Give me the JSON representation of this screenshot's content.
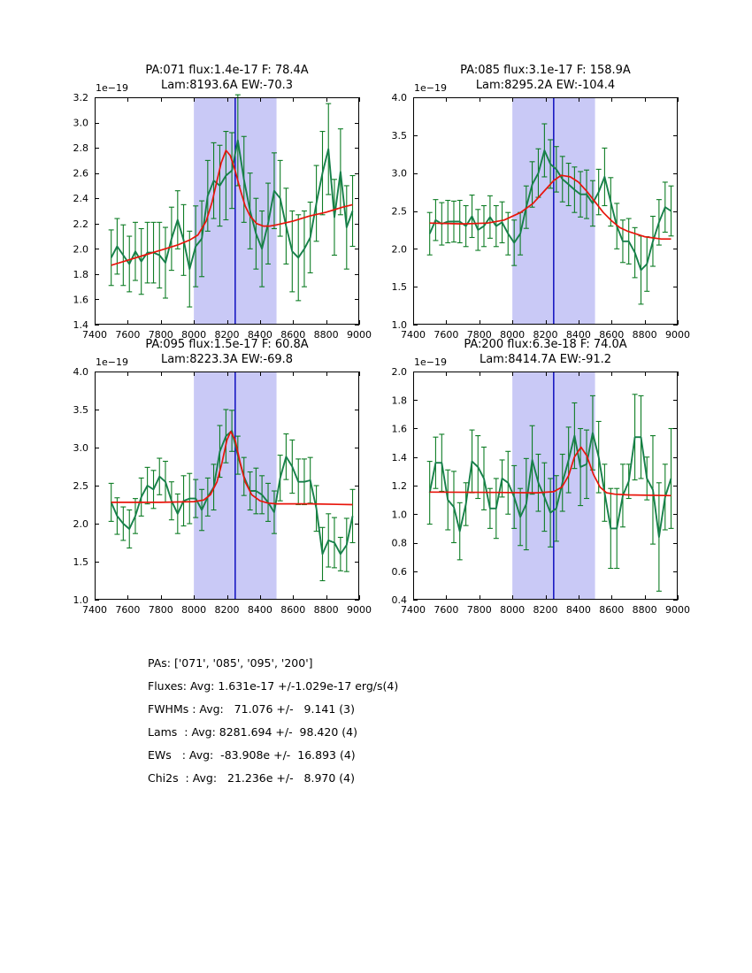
{
  "chart_data": {
    "type": "line",
    "description": "2x2 grid of spectral line fits: flux vs wavelength with error bars, red Gaussian+continuum fit, shaded fit window 8000-8500 A and vertical center line at 8250 A",
    "colors": {
      "data_line": "#17804a",
      "error_bar": "#0e7d25",
      "fit_line": "#e8150b",
      "band_fill": "#c9c9f6",
      "center_line": "#0000bb",
      "axis": "#000000"
    },
    "shared": {
      "xlim": [
        7400,
        9000
      ],
      "xticks": [
        7400,
        7600,
        7800,
        8000,
        8200,
        8400,
        8600,
        8800,
        9000
      ],
      "xtick_labels": [
        "7400",
        "7600",
        "7800",
        "8000",
        "8200",
        "8400",
        "8600",
        "8800",
        "9000"
      ],
      "band": [
        8000,
        8500
      ],
      "vline": 8250,
      "offset_label": "1e−19",
      "x_data": [
        7500,
        7536,
        7573,
        7610,
        7646,
        7682,
        7719,
        7756,
        7792,
        7828,
        7865,
        7902,
        7938,
        7974,
        8011,
        8048,
        8084,
        8120,
        8157,
        8194,
        8230,
        8266,
        8303,
        8340,
        8376,
        8412,
        8449,
        8486,
        8522,
        8558,
        8595,
        8632,
        8668,
        8704,
        8741,
        8778,
        8814,
        8850,
        8887,
        8924,
        8960
      ]
    },
    "panels": [
      {
        "title1": "PA:071 flux:1.4e-17 F: 78.4A",
        "title2": "Lam:8193.6A EW:-70.3",
        "ylim": [
          1.4,
          3.2
        ],
        "yticks": [
          1.4,
          1.6,
          1.8,
          2.0,
          2.2,
          2.4,
          2.6,
          2.8,
          3.0,
          3.2
        ],
        "ytick_labels": [
          "1.4",
          "1.6",
          "1.8",
          "2.0",
          "2.2",
          "2.4",
          "2.6",
          "2.8",
          "3.0",
          "3.2"
        ],
        "flux": [
          1.93,
          2.02,
          1.95,
          1.88,
          1.98,
          1.9,
          1.97,
          1.97,
          1.95,
          1.89,
          2.08,
          2.23,
          2.07,
          1.84,
          2.02,
          2.08,
          2.42,
          2.54,
          2.5,
          2.58,
          2.62,
          2.86,
          2.55,
          2.3,
          2.12,
          2.0,
          2.2,
          2.46,
          2.4,
          2.18,
          1.98,
          1.93,
          2.0,
          2.09,
          2.36,
          2.6,
          2.79,
          2.25,
          2.61,
          2.17,
          2.3
        ],
        "flux_err": [
          0.22,
          0.22,
          0.24,
          0.22,
          0.23,
          0.26,
          0.24,
          0.24,
          0.26,
          0.28,
          0.25,
          0.23,
          0.28,
          0.3,
          0.32,
          0.3,
          0.28,
          0.3,
          0.32,
          0.35,
          0.3,
          0.36,
          0.34,
          0.3,
          0.28,
          0.3,
          0.32,
          0.3,
          0.3,
          0.3,
          0.32,
          0.34,
          0.3,
          0.28,
          0.3,
          0.33,
          0.36,
          0.3,
          0.34,
          0.33,
          0.28
        ],
        "fit": {
          "x": [
            7500,
            7600,
            7700,
            7800,
            7900,
            7975,
            8025,
            8075,
            8110,
            8140,
            8165,
            8194,
            8220,
            8250,
            8280,
            8310,
            8340,
            8380,
            8420,
            8460,
            8500,
            8600,
            8700,
            8800,
            8900,
            8960
          ],
          "y": [
            1.87,
            1.91,
            1.95,
            1.99,
            2.03,
            2.07,
            2.11,
            2.22,
            2.37,
            2.54,
            2.68,
            2.78,
            2.74,
            2.62,
            2.47,
            2.34,
            2.26,
            2.2,
            2.18,
            2.18,
            2.19,
            2.22,
            2.26,
            2.29,
            2.33,
            2.35
          ]
        }
      },
      {
        "title1": "PA:085 flux:3.1e-17 F: 158.9A",
        "title2": "Lam:8295.2A EW:-104.4",
        "ylim": [
          1.0,
          4.0
        ],
        "yticks": [
          1.0,
          1.5,
          2.0,
          2.5,
          3.0,
          3.5,
          4.0
        ],
        "ytick_labels": [
          "1.0",
          "1.5",
          "2.0",
          "2.5",
          "3.0",
          "3.5",
          "4.0"
        ],
        "flux": [
          2.2,
          2.38,
          2.33,
          2.36,
          2.36,
          2.36,
          2.3,
          2.43,
          2.25,
          2.3,
          2.42,
          2.3,
          2.35,
          2.2,
          2.08,
          2.2,
          2.55,
          2.85,
          3.0,
          3.3,
          3.12,
          3.05,
          2.92,
          2.85,
          2.78,
          2.72,
          2.72,
          2.6,
          2.75,
          2.95,
          2.62,
          2.3,
          2.1,
          2.1,
          1.95,
          1.72,
          1.8,
          2.1,
          2.35,
          2.55,
          2.5
        ],
        "flux_err": [
          0.28,
          0.27,
          0.28,
          0.28,
          0.27,
          0.28,
          0.27,
          0.28,
          0.27,
          0.27,
          0.28,
          0.27,
          0.27,
          0.28,
          0.3,
          0.28,
          0.28,
          0.3,
          0.32,
          0.35,
          0.32,
          0.3,
          0.3,
          0.28,
          0.3,
          0.3,
          0.32,
          0.3,
          0.3,
          0.38,
          0.32,
          0.3,
          0.28,
          0.3,
          0.33,
          0.45,
          0.36,
          0.33,
          0.3,
          0.33,
          0.33
        ],
        "fit": {
          "x": [
            7500,
            7700,
            7850,
            7950,
            8050,
            8125,
            8200,
            8250,
            8295,
            8350,
            8400,
            8450,
            8500,
            8550,
            8600,
            8650,
            8700,
            8800,
            8900,
            8960
          ],
          "y": [
            2.34,
            2.33,
            2.34,
            2.38,
            2.48,
            2.6,
            2.78,
            2.9,
            2.97,
            2.95,
            2.88,
            2.76,
            2.62,
            2.48,
            2.37,
            2.28,
            2.23,
            2.16,
            2.13,
            2.13
          ]
        }
      },
      {
        "title1": "PA:095 flux:1.5e-17 F: 60.8A",
        "title2": "Lam:8223.3A EW:-69.8",
        "ylim": [
          1.0,
          4.0
        ],
        "yticks": [
          1.0,
          1.5,
          2.0,
          2.5,
          3.0,
          3.5,
          4.0
        ],
        "ytick_labels": [
          "1.0",
          "1.5",
          "2.0",
          "2.5",
          "3.0",
          "3.5",
          "4.0"
        ],
        "flux": [
          2.28,
          2.1,
          2.0,
          1.93,
          2.1,
          2.35,
          2.5,
          2.45,
          2.62,
          2.55,
          2.3,
          2.13,
          2.3,
          2.33,
          2.33,
          2.18,
          2.35,
          2.48,
          2.95,
          3.15,
          3.22,
          2.9,
          2.62,
          2.43,
          2.43,
          2.38,
          2.28,
          2.15,
          2.6,
          2.88,
          2.75,
          2.55,
          2.55,
          2.57,
          2.2,
          1.6,
          1.78,
          1.75,
          1.6,
          1.72,
          2.1
        ],
        "flux_err": [
          0.25,
          0.24,
          0.22,
          0.25,
          0.23,
          0.25,
          0.24,
          0.25,
          0.24,
          0.27,
          0.25,
          0.26,
          0.33,
          0.33,
          0.25,
          0.27,
          0.25,
          0.3,
          0.34,
          0.35,
          0.27,
          0.25,
          0.25,
          0.25,
          0.3,
          0.25,
          0.25,
          0.28,
          0.3,
          0.3,
          0.35,
          0.3,
          0.3,
          0.3,
          0.3,
          0.35,
          0.35,
          0.33,
          0.22,
          0.35,
          0.35
        ],
        "fit": {
          "x": [
            7500,
            7800,
            8000,
            8060,
            8100,
            8140,
            8170,
            8200,
            8223,
            8250,
            8280,
            8310,
            8350,
            8400,
            8450,
            8500,
            8700,
            8960
          ],
          "y": [
            2.28,
            2.28,
            2.29,
            2.31,
            2.38,
            2.55,
            2.8,
            3.1,
            3.21,
            3.1,
            2.8,
            2.55,
            2.38,
            2.3,
            2.27,
            2.26,
            2.26,
            2.25
          ]
        }
      },
      {
        "title1": "PA:200 flux:6.3e-18 F: 74.0A",
        "title2": "Lam:8414.7A EW:-91.2",
        "ylim": [
          0.4,
          2.0
        ],
        "yticks": [
          0.4,
          0.6,
          0.8,
          1.0,
          1.2,
          1.4,
          1.6,
          1.8,
          2.0
        ],
        "ytick_labels": [
          "0.4",
          "0.6",
          "0.8",
          "1.0",
          "1.2",
          "1.4",
          "1.6",
          "1.8",
          "2.0"
        ],
        "flux": [
          1.15,
          1.36,
          1.36,
          1.1,
          1.05,
          0.88,
          1.07,
          1.37,
          1.33,
          1.25,
          1.04,
          1.04,
          1.25,
          1.22,
          1.12,
          0.98,
          1.07,
          1.38,
          1.22,
          1.12,
          1.01,
          1.04,
          1.22,
          1.38,
          1.55,
          1.33,
          1.35,
          1.57,
          1.4,
          1.15,
          0.9,
          0.9,
          1.13,
          1.23,
          1.54,
          1.54,
          1.25,
          1.17,
          0.84,
          1.12,
          1.25
        ],
        "flux_err": [
          0.22,
          0.18,
          0.2,
          0.21,
          0.25,
          0.2,
          0.15,
          0.22,
          0.22,
          0.22,
          0.14,
          0.21,
          0.13,
          0.22,
          0.22,
          0.2,
          0.32,
          0.24,
          0.2,
          0.24,
          0.24,
          0.23,
          0.2,
          0.23,
          0.23,
          0.27,
          0.24,
          0.26,
          0.25,
          0.2,
          0.28,
          0.28,
          0.22,
          0.12,
          0.3,
          0.29,
          0.15,
          0.38,
          0.38,
          0.23,
          0.35
        ],
        "fit": {
          "x": [
            7500,
            7900,
            8150,
            8250,
            8300,
            8340,
            8375,
            8415,
            8450,
            8490,
            8530,
            8570,
            8620,
            8700,
            8960
          ],
          "y": [
            1.155,
            1.152,
            1.15,
            1.157,
            1.19,
            1.27,
            1.4,
            1.47,
            1.41,
            1.28,
            1.19,
            1.15,
            1.14,
            1.135,
            1.13
          ]
        }
      }
    ]
  },
  "summary": {
    "lines": [
      "PAs: ['071', '085', '095', '200']",
      "Fluxes: Avg: 1.631e-17 +/-1.029e-17 erg/s(4)",
      "FWHMs : Avg:   71.076 +/-   9.141 (3)",
      "Lams  : Avg: 8281.694 +/-  98.420 (4)",
      "EWs   : Avg:  -83.908e +/-  16.893 (4)",
      "Chi2s  : Avg:   21.236e +/-   8.970 (4)"
    ]
  }
}
